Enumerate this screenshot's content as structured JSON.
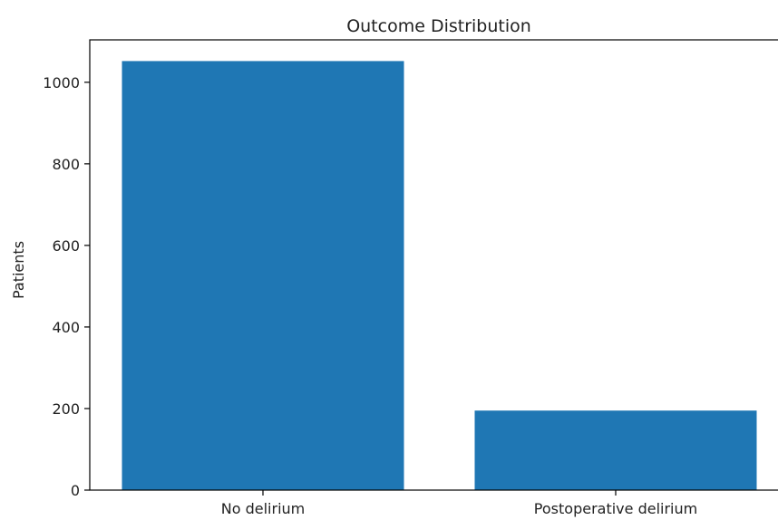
{
  "chart_data": {
    "type": "bar",
    "title": "Outcome Distribution",
    "xlabel": "",
    "ylabel": "Patients",
    "categories": [
      "No delirium",
      "Postoperative delirium"
    ],
    "values": [
      1052,
      195
    ],
    "ylim": [
      0,
      1104
    ],
    "yticks": [
      0,
      200,
      400,
      600,
      800,
      1000
    ],
    "grid": false,
    "legend": "none",
    "bar_color": "#1f77b4"
  }
}
